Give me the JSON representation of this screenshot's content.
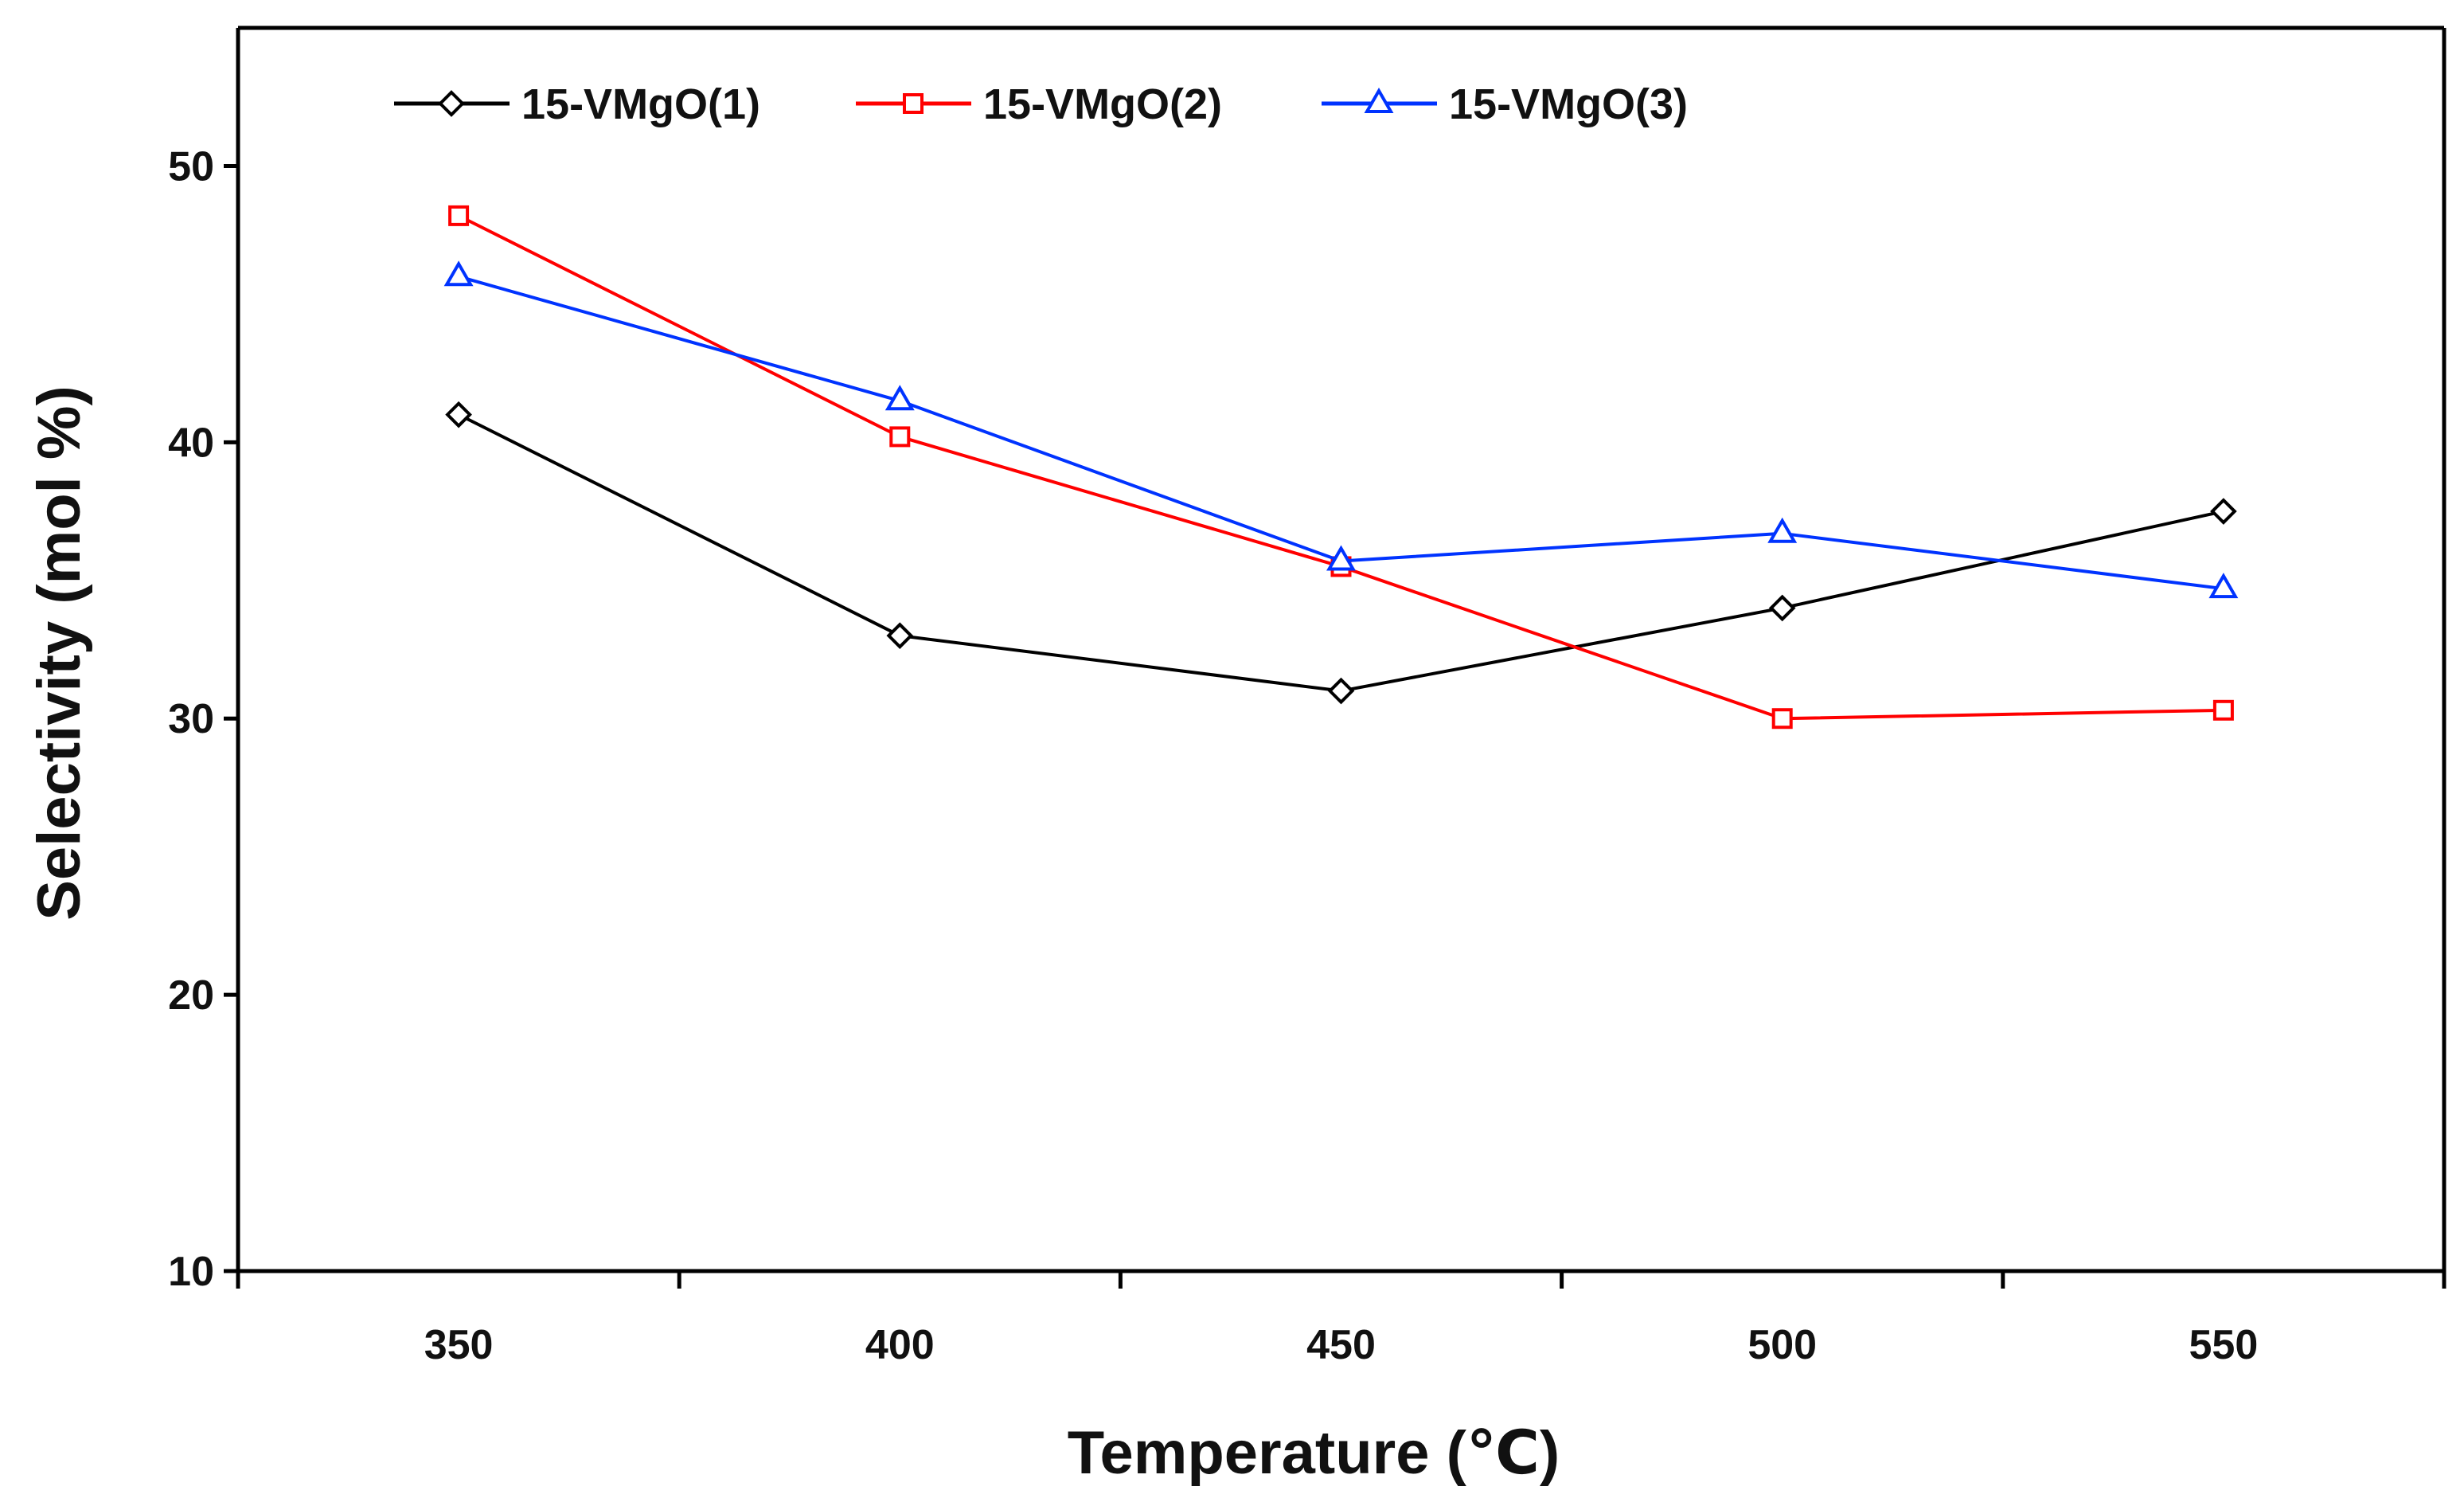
{
  "chart_data": {
    "type": "line",
    "title": "",
    "xlabel": "Temperature (℃)",
    "ylabel": "Selectivity (mol %)",
    "x": [
      350,
      400,
      450,
      500,
      550
    ],
    "x_ticks": [
      "350",
      "400",
      "450",
      "500",
      "550"
    ],
    "xlim": [
      325,
      575
    ],
    "y_ticks": [
      "10",
      "20",
      "30",
      "40",
      "50"
    ],
    "ylim": [
      10,
      55
    ],
    "grid": false,
    "legend_position": "top-left",
    "series": [
      {
        "name": "15-VMgO(1)",
        "color": "#000000",
        "marker": "diamond",
        "values": [
          41.0,
          33.0,
          31.0,
          34.0,
          37.5
        ]
      },
      {
        "name": "15-VMgO(2)",
        "color": "#ff0000",
        "marker": "square",
        "values": [
          48.2,
          40.2,
          35.5,
          30.0,
          30.3
        ]
      },
      {
        "name": "15-VMgO(3)",
        "color": "#0033ff",
        "marker": "triangle",
        "values": [
          46.0,
          41.5,
          35.7,
          36.7,
          34.7
        ]
      }
    ]
  }
}
